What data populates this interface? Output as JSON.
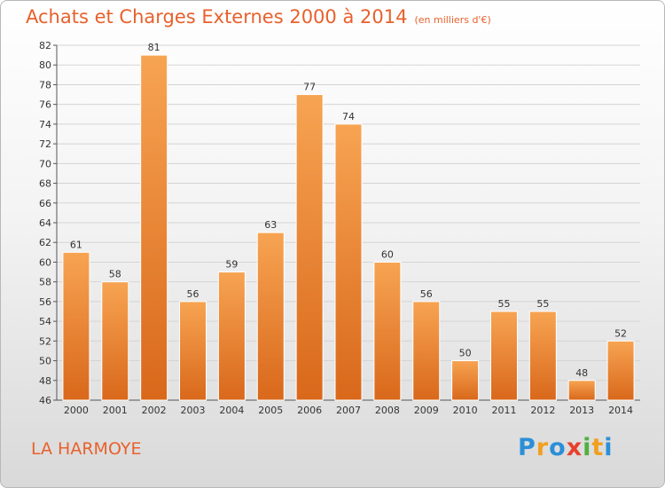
{
  "header": {
    "title": "Achats et Charges Externes 2000 à 2014",
    "unit": "(en milliers d'€)"
  },
  "footer": {
    "town": "LA HARMOYE",
    "logo_letters": [
      "P",
      "r",
      "o",
      "x",
      "i",
      "t",
      "i"
    ],
    "logo_colors": [
      "#2b8fd8",
      "#f0a020",
      "#2b8fd8",
      "#e8402c",
      "#50b040",
      "#f0a020",
      "#2b8fd8"
    ]
  },
  "chart_data": {
    "type": "bar",
    "categories": [
      "2000",
      "2001",
      "2002",
      "2003",
      "2004",
      "2005",
      "2006",
      "2007",
      "2008",
      "2009",
      "2010",
      "2011",
      "2012",
      "2013",
      "2014"
    ],
    "values": [
      61,
      58,
      81,
      56,
      59,
      63,
      77,
      74,
      60,
      56,
      50,
      55,
      55,
      48,
      52
    ],
    "ylim": [
      46,
      82
    ],
    "yticks": [
      46,
      48,
      50,
      52,
      54,
      56,
      58,
      60,
      62,
      64,
      66,
      68,
      70,
      72,
      74,
      76,
      78,
      80,
      82
    ],
    "grid": true,
    "bar_color_light": "#f7a452",
    "bar_color_dark": "#d9681b",
    "title_color": "#e8612c"
  }
}
